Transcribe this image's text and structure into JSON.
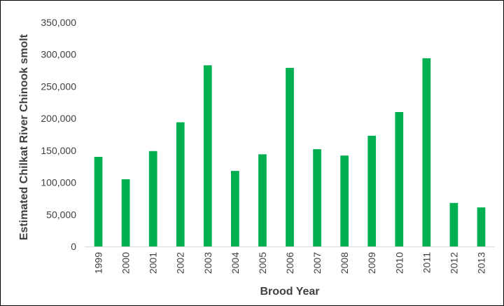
{
  "chart_data": {
    "type": "bar",
    "title": "",
    "xlabel": "Brood Year",
    "ylabel": "Estimated Chilkat River Chinook smolt",
    "categories": [
      "1999",
      "2000",
      "2001",
      "2002",
      "2003",
      "2004",
      "2005",
      "2006",
      "2007",
      "2008",
      "2009",
      "2010",
      "2011",
      "2012",
      "2013"
    ],
    "values": [
      140000,
      105000,
      149000,
      194000,
      283000,
      118000,
      144000,
      279000,
      152000,
      142000,
      173000,
      210000,
      294000,
      68000,
      61000
    ],
    "ylim": [
      0,
      350000
    ],
    "yticks": [
      0,
      50000,
      100000,
      150000,
      200000,
      250000,
      300000,
      350000
    ],
    "ytick_labels": [
      "0",
      "50,000",
      "100,000",
      "150,000",
      "200,000",
      "250,000",
      "300,000",
      "350,000"
    ],
    "grid": false,
    "legend": "none",
    "bar_color": "#00b050",
    "axis_color": "#d9d9d9",
    "text_color": "#404040"
  }
}
